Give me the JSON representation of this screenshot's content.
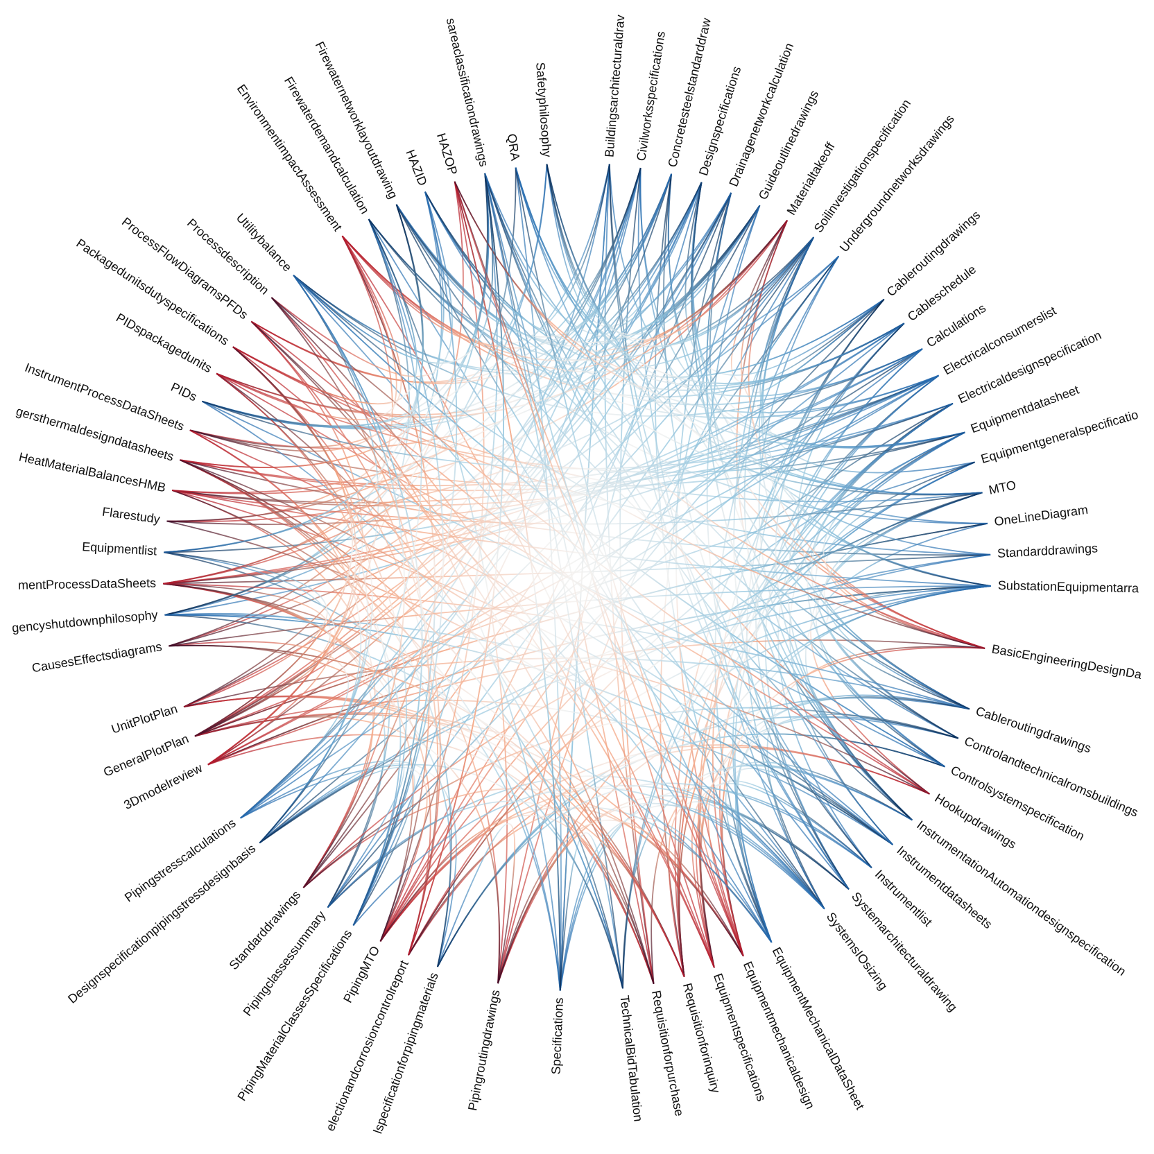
{
  "node_groups": [
    [
      "Buildingsarchitecturaldrav",
      "Civilworksspecifications",
      "Concretesteelstandarddraw",
      "Designspecifications",
      "Drainagenetworkcalculation",
      "Guideoutlinedrawings",
      "Materialtakeoff",
      "Soilinvestigationspecification",
      "Undergroundnetworksdrawings"
    ],
    [
      "Cableroutingdrawings",
      "Cableschedule",
      "Calculations",
      "Electricalconsumerslist",
      "Electricaldesignspecification",
      "Equipmentdatasheet",
      "Equipmentgeneralspecificatio",
      "MTO",
      "OneLineDiagram",
      "Standarddrawings",
      "SubstationEquipmentarra"
    ],
    [
      "BasicEngineeringDesignDa"
    ],
    [
      "Cableroutingdrawings",
      "Controlandtechnicalromsbuildings",
      "Controlsystemspecification",
      "Hookupdrawings",
      "InstrumentationAutomationdesignspecification",
      "Instrumentdatasheets",
      "Instrumentlist",
      "Systemarchitecturaldrawing",
      "SystemsIOsizing"
    ],
    [
      "EquipmentMechanicalDataSheet",
      "Equipmentmechanicaldesign",
      "Equipmentspecifications",
      "Requisitionforinquiry",
      "Requisitionforpurchase",
      "TechnicalBidTabulation"
    ],
    [
      "Specifications"
    ],
    [
      "Pipingroutingdrawings"
    ],
    [
      "lspecificationforpipingmaterials",
      "electionandcorrosioncontrolreport",
      "PipingMTO",
      "PipingMaterialClassesSpecifications",
      "Pipingclassessummary",
      "Standarddrawings"
    ],
    [
      "Designspecificationpipingstressdesignbasis",
      "Pipingstresscalculations"
    ],
    [
      "3Dmodelreview",
      "GeneralPlotPlan",
      "UnitPlotPlan"
    ],
    [
      "CausesEffectsdiagrams",
      "gencyshutdownphilosophy",
      "mentProcessDataSheets",
      "Equipmentlist",
      "Flarestudy",
      "HeatMaterialBalancesHMB",
      "gersthermaldesigndatasheets",
      "InstrumentProcessDataSheets",
      "PIDs",
      "PIDspackagedunits",
      "Packagedunitsdutyspecifications",
      "ProcessFlowDiagramsPFDs",
      "Processdescription",
      "Utilitybalance"
    ],
    [
      "EnvironmentimpactAssessment",
      "Firewaterdemandcalculation",
      "Firewaternetworklayoutdrawing",
      "HAZID",
      "HAZOP",
      "sareaclassificationdrawings",
      "QRA",
      "Safetyphilosophy"
    ]
  ]
}
